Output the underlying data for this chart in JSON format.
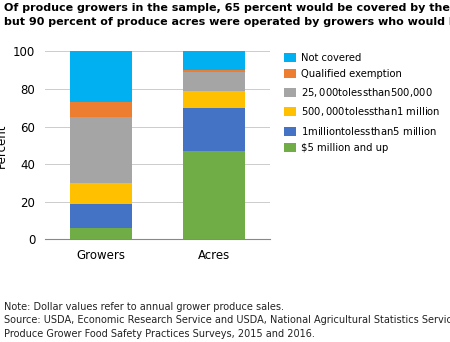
{
  "categories": [
    "Growers",
    "Acres"
  ],
  "series": [
    {
      "label": "$5 million and up",
      "color": "#70AD47",
      "values": [
        6,
        47
      ]
    },
    {
      "label": "$1 million to less than $5 million",
      "color": "#4472C4",
      "values": [
        13,
        23
      ]
    },
    {
      "label": "$500,000 to less than $1 million",
      "color": "#FFC000",
      "values": [
        11,
        9
      ]
    },
    {
      "label": "$25,000 to less than $500,000",
      "color": "#A5A5A5",
      "values": [
        35,
        10
      ]
    },
    {
      "label": "Qualified exemption",
      "color": "#ED7D31",
      "values": [
        8,
        1
      ]
    },
    {
      "label": "Not covered",
      "color": "#00B0F0",
      "values": [
        27,
        10
      ]
    }
  ],
  "ylabel": "Percent",
  "ylim": [
    0,
    100
  ],
  "yticks": [
    0,
    20,
    40,
    60,
    80,
    100
  ],
  "title_line1": "Of produce growers in the sample, 65 percent would be covered by the Produce Rule,",
  "title_line2": "but 90 percent of produce acres were operated by growers who would be covered",
  "note": "Note: Dollar values refer to annual grower produce sales.\nSource: USDA, Economic Research Service and USDA, National Agricultural Statistics Service,\nProduce Grower Food Safety Practices Surveys, 2015 and 2016.",
  "bar_width": 0.55,
  "background_color": "#FFFFFF",
  "title_fontsize": 8.0,
  "label_fontsize": 8.5,
  "note_fontsize": 7.0
}
